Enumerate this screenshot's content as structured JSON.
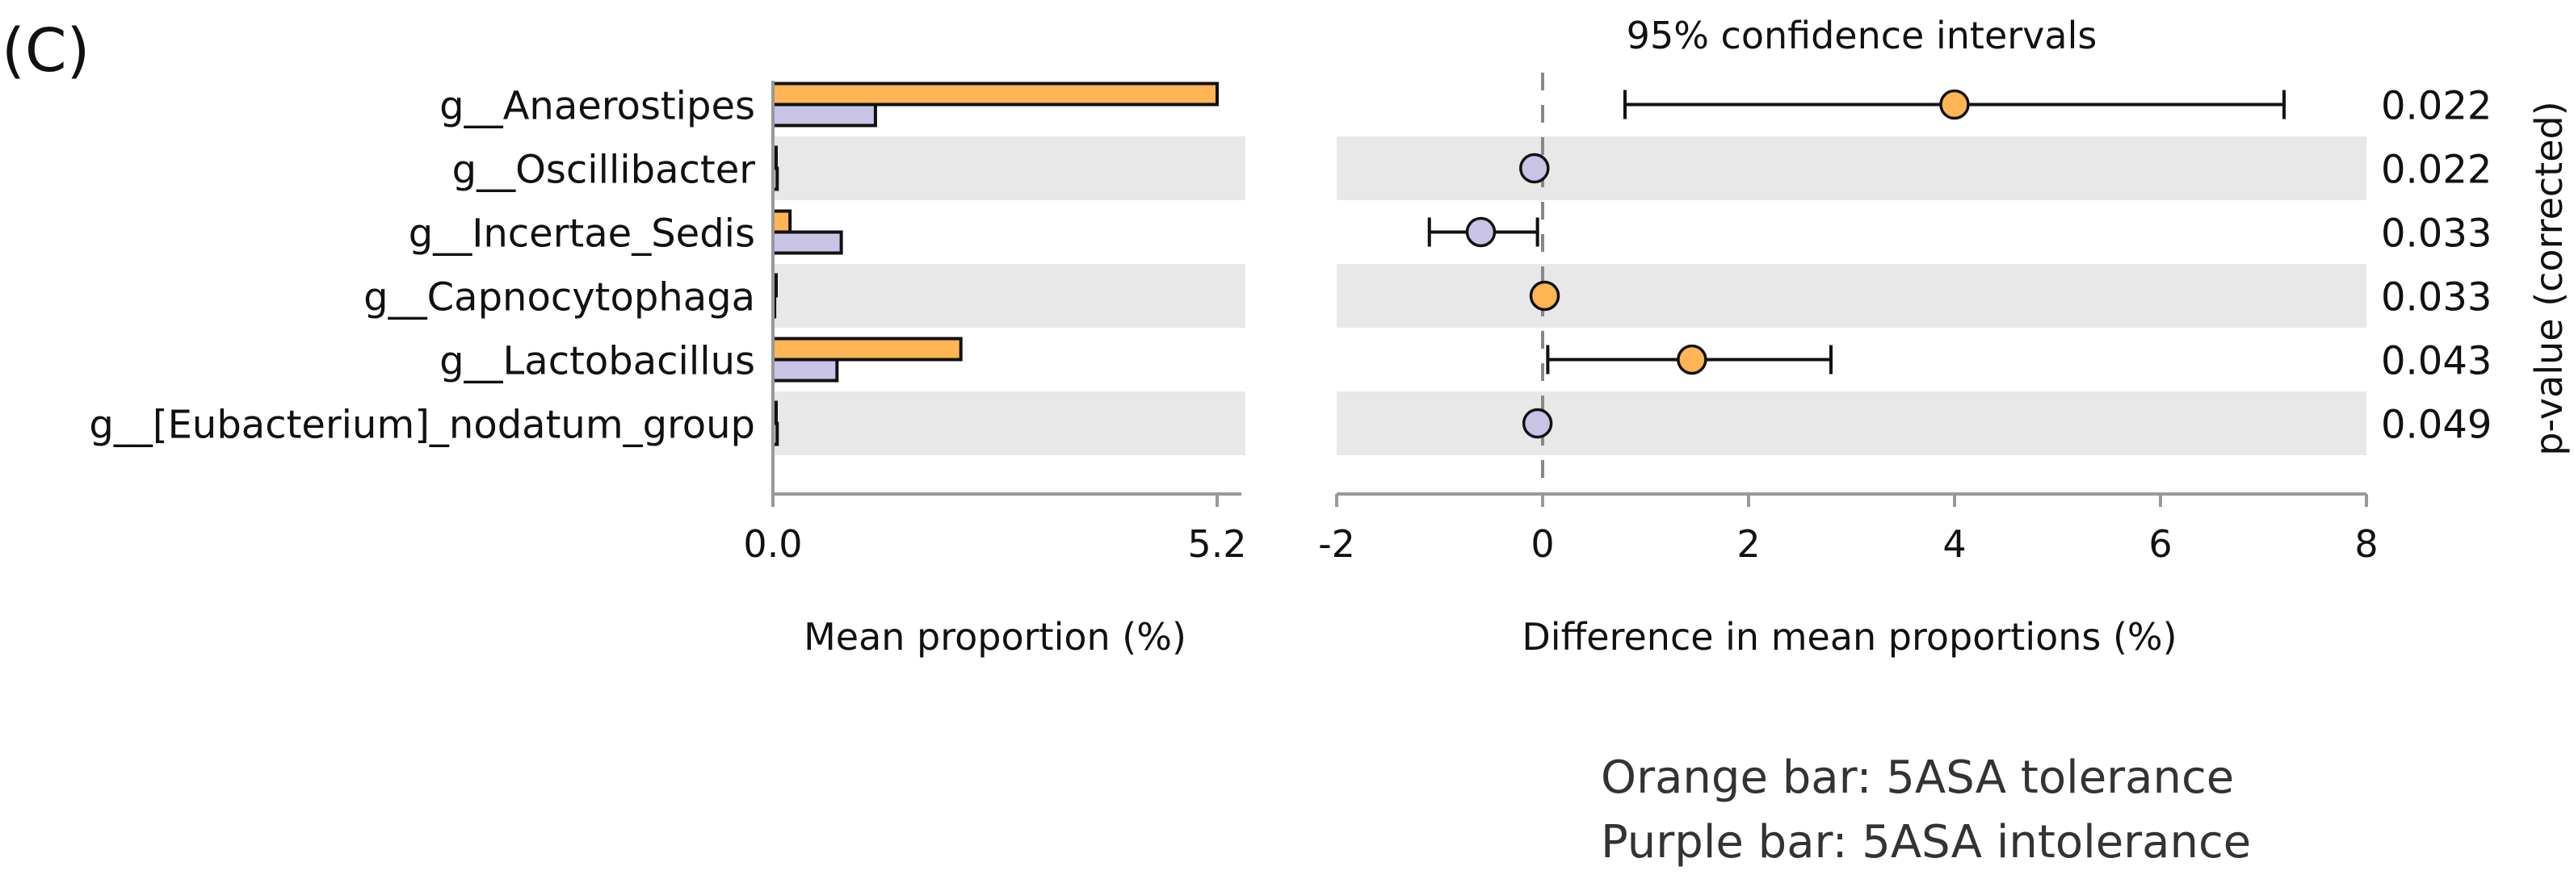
{
  "panel_label": "(C)",
  "legend": {
    "line1": "Orange bar: 5ASA tolerance",
    "line2": "Purple bar: 5ASA intolerance"
  },
  "chart_data": [
    {
      "type": "bar",
      "orientation": "horizontal",
      "title": "",
      "xlabel": "Mean proportion (%)",
      "ylabel": "",
      "xlim": [
        0,
        5.2
      ],
      "xticks": [
        0,
        5.2
      ],
      "xtick_labels": [
        "0.0",
        "5.2"
      ],
      "categories": [
        "g__Anaerostipes",
        "g__Oscillibacter",
        "g__Incertae_Sedis",
        "g__Capnocytophaga",
        "g__Lactobacillus",
        "g__[Eubacterium]_nodatum_group"
      ],
      "series": [
        {
          "name": "5ASA tolerance",
          "color": "#FFB554",
          "values": [
            5.2,
            0.0,
            0.2,
            0.0,
            2.2,
            0.0
          ]
        },
        {
          "name": "5ASA intolerance",
          "color": "#C9C3E6",
          "values": [
            1.2,
            0.05,
            0.8,
            0.02,
            0.75,
            0.05
          ]
        }
      ]
    },
    {
      "type": "scatter",
      "subtype": "errorbar",
      "title": "95% confidence intervals",
      "xlabel": "Difference in mean proportions (%)",
      "ylabel": "p-value (corrected)",
      "xlim": [
        -2,
        8
      ],
      "xticks": [
        -2,
        0,
        2,
        4,
        6,
        8
      ],
      "xtick_labels": [
        "-2",
        "0",
        "2",
        "4",
        "6",
        "8"
      ],
      "categories": [
        "g__Anaerostipes",
        "g__Oscillibacter",
        "g__Incertae_Sedis",
        "g__Capnocytophaga",
        "g__Lactobacillus",
        "g__[Eubacterium]_nodatum_group"
      ],
      "points": [
        {
          "diff": 4.0,
          "ci_low": 0.8,
          "ci_high": 7.2,
          "group": "5ASA tolerance"
        },
        {
          "diff": -0.08,
          "ci_low": null,
          "ci_high": null,
          "group": "5ASA intolerance"
        },
        {
          "diff": -0.6,
          "ci_low": -1.1,
          "ci_high": -0.05,
          "group": "5ASA intolerance"
        },
        {
          "diff": 0.02,
          "ci_low": null,
          "ci_high": null,
          "group": "5ASA tolerance"
        },
        {
          "diff": 1.45,
          "ci_low": 0.05,
          "ci_high": 2.8,
          "group": "5ASA tolerance"
        },
        {
          "diff": -0.05,
          "ci_low": null,
          "ci_high": null,
          "group": "5ASA intolerance"
        }
      ],
      "p_values": [
        "0.022",
        "0.022",
        "0.033",
        "0.033",
        "0.043",
        "0.049"
      ],
      "group_colors": {
        "5ASA tolerance": "#FFB554",
        "5ASA intolerance": "#C9C3E6"
      },
      "stripe_color": "#E8E8E8",
      "zero_line": "dashed"
    }
  ]
}
